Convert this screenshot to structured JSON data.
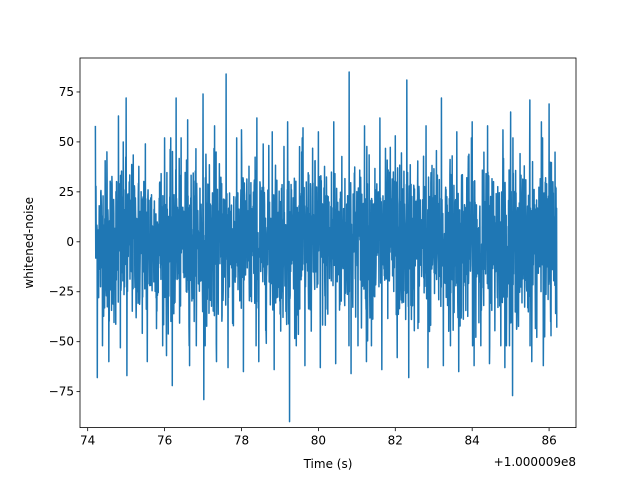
{
  "chart_data": {
    "type": "line",
    "title": "",
    "xlabel": "Time (s)",
    "ylabel": "whitened-noise",
    "x_offset_label": "+1.000009e8",
    "xlim": [
      73.8,
      86.7
    ],
    "ylim": [
      -93,
      92
    ],
    "x_ticks": [
      74,
      76,
      78,
      80,
      82,
      84,
      86
    ],
    "x_tick_labels": [
      "74",
      "76",
      "78",
      "80",
      "82",
      "84",
      "86"
    ],
    "y_ticks": [
      -75,
      -50,
      -25,
      0,
      25,
      50,
      75
    ],
    "y_tick_labels": [
      "−75",
      "−50",
      "−25",
      "0",
      "25",
      "50",
      "75"
    ],
    "series": [
      {
        "color": "#1f77b4",
        "x_range": [
          74.2,
          86.2
        ],
        "points": [
          [
            74.2,
            58
          ],
          [
            74.25,
            -68
          ],
          [
            74.5,
            45
          ],
          [
            74.55,
            -60
          ],
          [
            74.8,
            63
          ],
          [
            74.85,
            -53
          ],
          [
            75.0,
            72
          ],
          [
            75.02,
            -67
          ],
          [
            75.5,
            49
          ],
          [
            75.55,
            -60
          ],
          [
            76.0,
            52
          ],
          [
            76.05,
            -57
          ],
          [
            76.2,
            -72
          ],
          [
            76.3,
            72
          ],
          [
            76.6,
            61
          ],
          [
            76.65,
            -62
          ],
          [
            77.0,
            74
          ],
          [
            77.02,
            -79
          ],
          [
            77.3,
            58
          ],
          [
            77.35,
            -60
          ],
          [
            77.6,
            84
          ],
          [
            77.65,
            -63
          ],
          [
            78.0,
            56
          ],
          [
            78.05,
            -65
          ],
          [
            78.4,
            62
          ],
          [
            78.45,
            -60
          ],
          [
            78.8,
            55
          ],
          [
            78.85,
            -64
          ],
          [
            79.2,
            60
          ],
          [
            79.25,
            -90
          ],
          [
            79.6,
            57
          ],
          [
            79.65,
            -62
          ],
          [
            80.0,
            55
          ],
          [
            80.05,
            -63
          ],
          [
            80.4,
            60
          ],
          [
            80.45,
            -61
          ],
          [
            80.8,
            85
          ],
          [
            80.85,
            -66
          ],
          [
            81.2,
            58
          ],
          [
            81.25,
            -60
          ],
          [
            81.6,
            62
          ],
          [
            81.65,
            -64
          ],
          [
            82.0,
            53
          ],
          [
            82.05,
            -58
          ],
          [
            82.3,
            81
          ],
          [
            82.35,
            -68
          ],
          [
            82.8,
            58
          ],
          [
            82.85,
            -63
          ],
          [
            83.2,
            72
          ],
          [
            83.25,
            -62
          ],
          [
            83.6,
            55
          ],
          [
            83.65,
            -65
          ],
          [
            84.0,
            60
          ],
          [
            84.05,
            -62
          ],
          [
            84.4,
            58
          ],
          [
            84.45,
            -61
          ],
          [
            84.8,
            56
          ],
          [
            84.85,
            -63
          ],
          [
            85.0,
            65
          ],
          [
            85.05,
            -77
          ],
          [
            85.5,
            71
          ],
          [
            85.55,
            -60
          ],
          [
            85.8,
            60
          ],
          [
            85.85,
            -62
          ],
          [
            86.0,
            69
          ],
          [
            86.05,
            -47
          ],
          [
            86.2,
            72
          ],
          [
            86.2,
            -43
          ]
        ]
      }
    ]
  }
}
